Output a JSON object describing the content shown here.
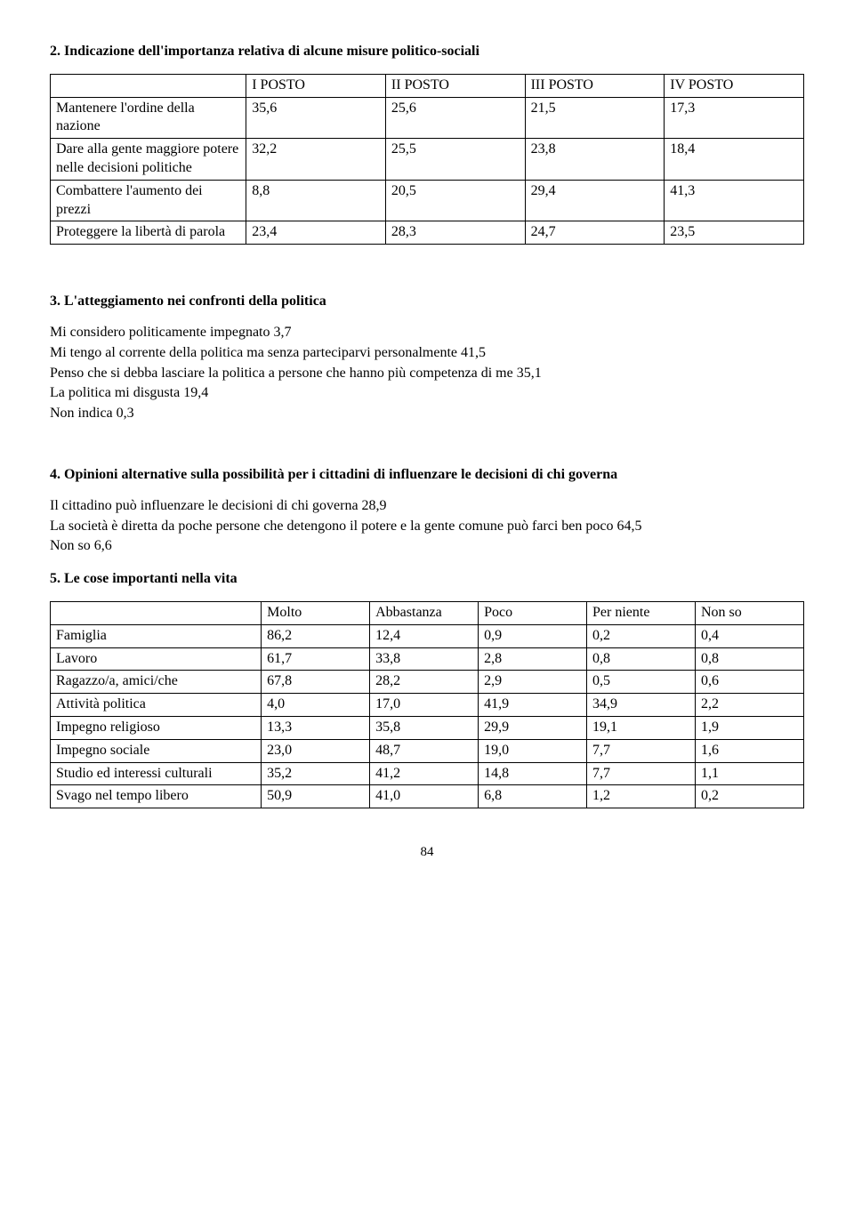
{
  "section2": {
    "title": "2. Indicazione dell'importanza relativa di alcune misure politico-sociali",
    "headers": [
      "I POSTO",
      "II POSTO",
      "III POSTO",
      "IV POSTO"
    ],
    "rows": [
      {
        "label": "Mantenere l'ordine della nazione",
        "v": [
          "35,6",
          "25,6",
          "21,5",
          "17,3"
        ]
      },
      {
        "label": "Dare alla gente maggiore potere nelle decisioni politiche",
        "v": [
          "32,2",
          "25,5",
          "23,8",
          "18,4"
        ]
      },
      {
        "label": "Combattere l'aumento dei prezzi",
        "v": [
          "8,8",
          "20,5",
          "29,4",
          "41,3"
        ]
      },
      {
        "label": "Proteggere la libertà di parola",
        "v": [
          "23,4",
          "28,3",
          "24,7",
          "23,5"
        ]
      }
    ]
  },
  "section3": {
    "title": "3. L'atteggiamento nei confronti della politica",
    "lines": [
      "Mi considero politicamente impegnato  3,7",
      "Mi tengo al corrente della politica ma senza parteciparvi personalmente  41,5",
      "Penso che si debba lasciare la politica a persone che hanno più competenza di me  35,1",
      "La politica mi disgusta 19,4",
      "Non indica  0,3"
    ]
  },
  "section4": {
    "title": " 4. Opinioni alternative sulla possibilità per i cittadini di influenzare le decisioni di chi governa",
    "lines": [
      "Il cittadino può influenzare le decisioni di chi governa   28,9",
      "La società è diretta da poche persone che detengono il potere e la gente comune può farci ben poco  64,5",
      "Non so   6,6"
    ]
  },
  "section5": {
    "title": "5. Le cose importanti nella vita",
    "headers": [
      "Molto",
      "Abbastanza",
      "Poco",
      "Per niente",
      "Non so"
    ],
    "rows": [
      {
        "label": "Famiglia",
        "v": [
          "86,2",
          "12,4",
          "0,9",
          "0,2",
          "0,4"
        ]
      },
      {
        "label": "Lavoro",
        "v": [
          "61,7",
          "33,8",
          "2,8",
          "0,8",
          "0,8"
        ]
      },
      {
        "label": "Ragazzo/a, amici/che",
        "v": [
          "67,8",
          "28,2",
          "2,9",
          "0,5",
          "0,6"
        ]
      },
      {
        "label": "Attività politica",
        "v": [
          "4,0",
          "17,0",
          "41,9",
          "34,9",
          "2,2"
        ]
      },
      {
        "label": "Impegno religioso",
        "v": [
          "13,3",
          "35,8",
          "29,9",
          "19,1",
          "1,9"
        ]
      },
      {
        "label": "Impegno sociale",
        "v": [
          "23,0",
          "48,7",
          "19,0",
          "7,7",
          "1,6"
        ]
      },
      {
        "label": "Studio ed interessi  culturali",
        "v": [
          "35,2",
          "41,2",
          "14,8",
          "7,7",
          "1,1"
        ]
      },
      {
        "label": "Svago nel tempo libero",
        "v": [
          "50,9",
          "41,0",
          "6,8",
          "1,2",
          "0,2"
        ]
      }
    ]
  },
  "pageNumber": "84"
}
